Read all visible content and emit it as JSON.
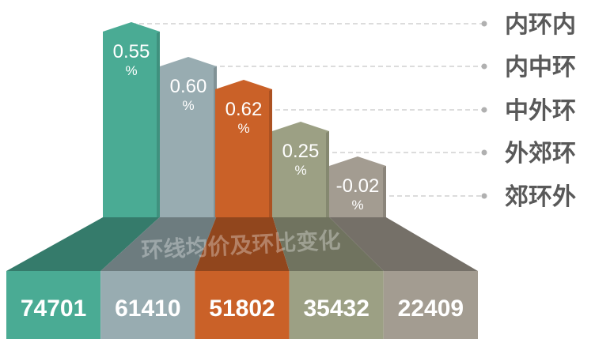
{
  "colors": {
    "green": "#4aab94",
    "blue_grey": "#98acb1",
    "orange": "#ca6128",
    "olive": "#9ca084",
    "taupe": "#a39c91",
    "leader_line": "#c8c8c8",
    "leader_dot": "#b0b0b0",
    "zone_label": "#595959",
    "value_text": "#ffffff"
  },
  "chart_data": {
    "type": "bar",
    "title": "环线均价及环比变化",
    "categories": [
      "内环内",
      "内中环",
      "中外环",
      "外郊环",
      "郊环外"
    ],
    "series": [
      {
        "values": [
          0.55,
          0.6,
          0.62,
          0.25,
          -0.02
        ]
      },
      {
        "values": [
          74701,
          61410,
          51802,
          35432,
          22409
        ]
      }
    ],
    "pct_labels": [
      "0.55",
      "0.60",
      "0.62",
      "0.25",
      "-0.02"
    ],
    "pct_unit": "%",
    "price_labels": [
      "74701",
      "61410",
      "51802",
      "35432",
      "22409"
    ],
    "legend": "right"
  }
}
